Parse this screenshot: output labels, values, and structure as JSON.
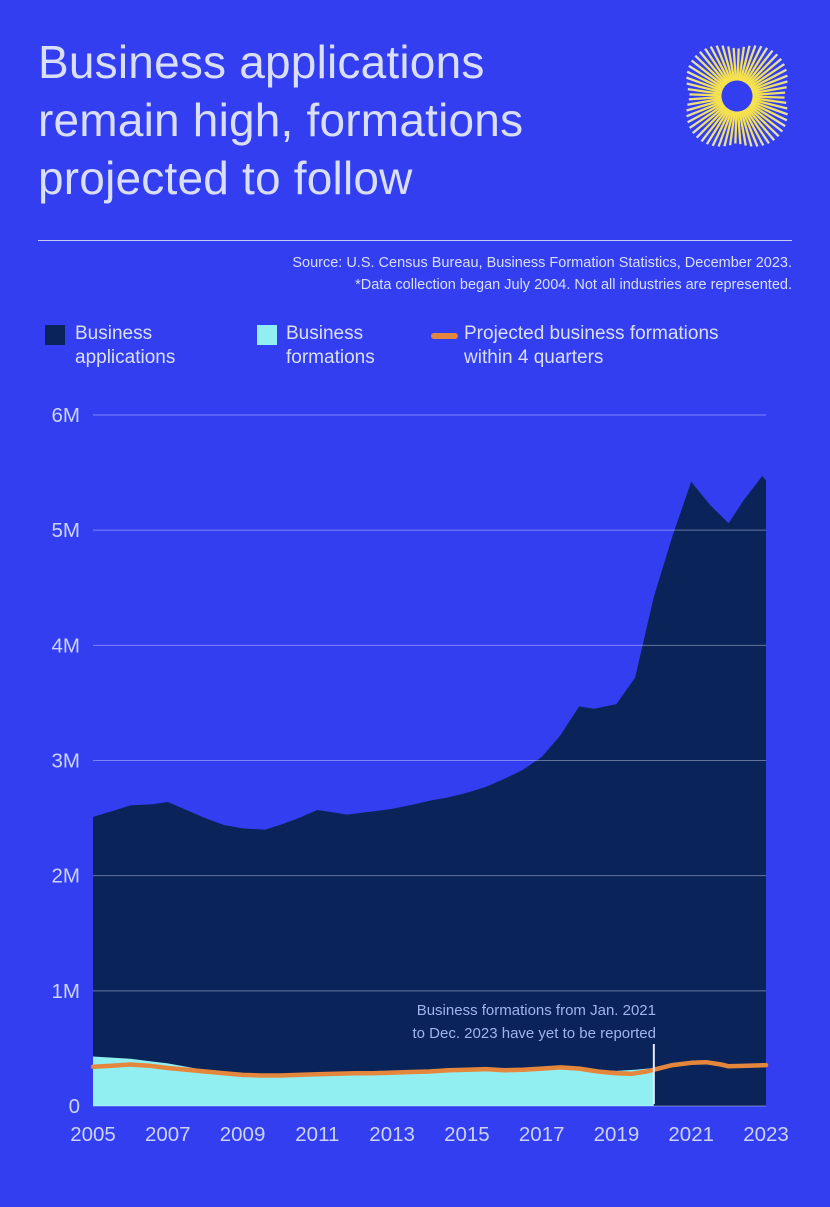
{
  "page": {
    "background": "#333EF1"
  },
  "header": {
    "title": "Business applications\nremain high, formations\nprojected to follow",
    "logo": "sunburst-logo",
    "logo_colors": {
      "inner": "#F9E44C",
      "outer": "#DEDFD0"
    }
  },
  "source": {
    "line1": "Source: U.S. Census Bureau, Business Formation Statistics, December 2023.",
    "line2": "*Data collection began July 2004. Not all industries are represented."
  },
  "legend": {
    "position": "top",
    "items": [
      {
        "label": "Business\napplications",
        "swatch": "square",
        "color": "#0A2459"
      },
      {
        "label": "Business\nformations",
        "swatch": "square",
        "color": "#92EFF1"
      },
      {
        "label": "Projected business formations\nwithin 4 quarters",
        "swatch": "line",
        "color": "#E4873C"
      }
    ]
  },
  "chart_data": {
    "type": "area",
    "units": "millions",
    "grid": true,
    "xlim": [
      2005,
      2023
    ],
    "ylim": [
      0,
      6
    ],
    "x_ticks": [
      2005,
      2007,
      2009,
      2011,
      2013,
      2015,
      2017,
      2019,
      2021,
      2023
    ],
    "y_ticks": [
      {
        "value": 0,
        "label": "0"
      },
      {
        "value": 1,
        "label": "1M"
      },
      {
        "value": 2,
        "label": "2M"
      },
      {
        "value": 3,
        "label": "3M"
      },
      {
        "value": 4,
        "label": "4M"
      },
      {
        "value": 5,
        "label": "5M"
      },
      {
        "value": 6,
        "label": "6M"
      }
    ],
    "series": [
      {
        "id": "applications-area",
        "name": "Business applications",
        "type": "area",
        "color": "#0A2459",
        "points": [
          [
            2005,
            2.51
          ],
          [
            2005.5,
            2.56
          ],
          [
            2006,
            2.61
          ],
          [
            2006.6,
            2.62
          ],
          [
            2007,
            2.64
          ],
          [
            2007.5,
            2.57
          ],
          [
            2008,
            2.5
          ],
          [
            2008.5,
            2.44
          ],
          [
            2009,
            2.41
          ],
          [
            2009.6,
            2.4
          ],
          [
            2010,
            2.44
          ],
          [
            2010.5,
            2.5
          ],
          [
            2011,
            2.57
          ],
          [
            2011.4,
            2.55
          ],
          [
            2011.8,
            2.53
          ],
          [
            2012.3,
            2.55
          ],
          [
            2013,
            2.58
          ],
          [
            2013.6,
            2.62
          ],
          [
            2014,
            2.65
          ],
          [
            2014.5,
            2.68
          ],
          [
            2015,
            2.72
          ],
          [
            2015.5,
            2.77
          ],
          [
            2016,
            2.84
          ],
          [
            2016.5,
            2.92
          ],
          [
            2017,
            3.03
          ],
          [
            2017.5,
            3.22
          ],
          [
            2018,
            3.47
          ],
          [
            2018.4,
            3.45
          ],
          [
            2019,
            3.49
          ],
          [
            2019.5,
            3.72
          ],
          [
            2020,
            4.42
          ],
          [
            2020.5,
            4.95
          ],
          [
            2021,
            5.42
          ],
          [
            2021.5,
            5.22
          ],
          [
            2022,
            5.06
          ],
          [
            2022.4,
            5.26
          ],
          [
            2022.9,
            5.47
          ],
          [
            2023,
            5.43
          ]
        ]
      },
      {
        "id": "formations-area",
        "name": "Business formations",
        "type": "area",
        "color": "#92EFF1",
        "points": [
          [
            2005,
            0.43
          ],
          [
            2005.5,
            0.42
          ],
          [
            2006,
            0.41
          ],
          [
            2006.5,
            0.39
          ],
          [
            2007,
            0.37
          ],
          [
            2007.5,
            0.34
          ],
          [
            2008,
            0.31
          ],
          [
            2008.5,
            0.29
          ],
          [
            2009,
            0.27
          ],
          [
            2009.5,
            0.26
          ],
          [
            2010,
            0.26
          ],
          [
            2010.5,
            0.26
          ],
          [
            2011,
            0.265
          ],
          [
            2011.5,
            0.27
          ],
          [
            2012,
            0.275
          ],
          [
            2012.5,
            0.28
          ],
          [
            2013,
            0.285
          ],
          [
            2013.5,
            0.29
          ],
          [
            2014,
            0.295
          ],
          [
            2014.5,
            0.3
          ],
          [
            2015,
            0.305
          ],
          [
            2015.5,
            0.31
          ],
          [
            2016,
            0.3
          ],
          [
            2016.5,
            0.305
          ],
          [
            2017,
            0.315
          ],
          [
            2017.5,
            0.325
          ],
          [
            2018,
            0.315
          ],
          [
            2018.5,
            0.31
          ],
          [
            2019,
            0.305
          ],
          [
            2019.5,
            0.315
          ],
          [
            2020,
            0.33
          ]
        ]
      },
      {
        "id": "projection-line",
        "name": "Projected business formations within 4 quarters",
        "type": "line",
        "color": "#E4873C",
        "points": [
          [
            2005,
            0.34
          ],
          [
            2005.5,
            0.35
          ],
          [
            2006,
            0.36
          ],
          [
            2006.5,
            0.35
          ],
          [
            2007,
            0.33
          ],
          [
            2007.5,
            0.315
          ],
          [
            2008,
            0.3
          ],
          [
            2008.5,
            0.285
          ],
          [
            2009,
            0.27
          ],
          [
            2009.5,
            0.265
          ],
          [
            2010,
            0.265
          ],
          [
            2010.5,
            0.27
          ],
          [
            2011,
            0.275
          ],
          [
            2011.5,
            0.28
          ],
          [
            2012,
            0.285
          ],
          [
            2012.5,
            0.285
          ],
          [
            2013,
            0.29
          ],
          [
            2013.5,
            0.295
          ],
          [
            2014,
            0.3
          ],
          [
            2014.5,
            0.31
          ],
          [
            2015,
            0.315
          ],
          [
            2015.5,
            0.32
          ],
          [
            2016,
            0.31
          ],
          [
            2016.5,
            0.315
          ],
          [
            2017,
            0.325
          ],
          [
            2017.5,
            0.335
          ],
          [
            2018,
            0.325
          ],
          [
            2018.5,
            0.3
          ],
          [
            2019,
            0.285
          ],
          [
            2019.4,
            0.28
          ],
          [
            2019.8,
            0.3
          ],
          [
            2020,
            0.315
          ],
          [
            2020.5,
            0.355
          ],
          [
            2021,
            0.375
          ],
          [
            2021.4,
            0.38
          ],
          [
            2021.8,
            0.36
          ],
          [
            2022,
            0.345
          ],
          [
            2022.5,
            0.35
          ],
          [
            2023,
            0.355
          ]
        ]
      }
    ],
    "annotation": {
      "text": "Business formations from Jan. 2021\nto Dec. 2023 have yet to be reported",
      "marker_year": 2020
    }
  }
}
